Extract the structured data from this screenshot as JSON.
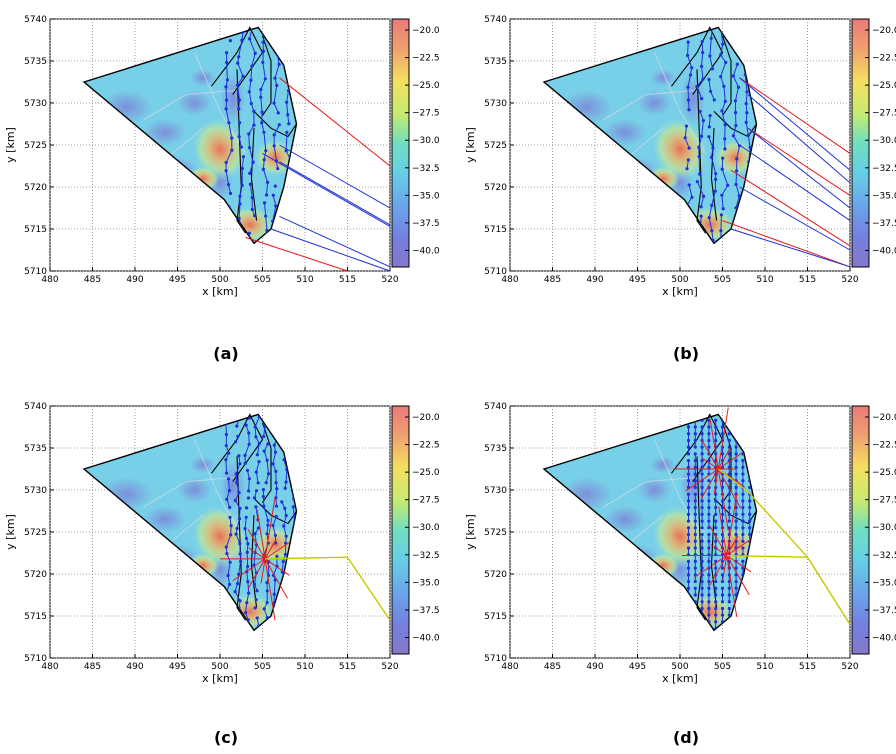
{
  "figure": {
    "panel_labels": [
      "(a)",
      "(b)",
      "(c)",
      "(d)"
    ],
    "xlabel": "x [km]",
    "ylabel": "y [km]"
  },
  "chart_data": [
    {
      "type": "heatmap",
      "label": "(a)",
      "xlabel": "x [km]",
      "ylabel": "y [km]",
      "xlim": [
        480,
        520
      ],
      "ylim": [
        5710,
        5740
      ],
      "xticks": [
        480,
        485,
        490,
        495,
        500,
        505,
        510,
        515,
        520
      ],
      "yticks": [
        5710,
        5715,
        5720,
        5725,
        5730,
        5735,
        5740
      ],
      "grid": true,
      "region": [
        [
          484,
          5732.5
        ],
        [
          504.5,
          5739
        ],
        [
          507.5,
          5734.5
        ],
        [
          509,
          5727.5
        ],
        [
          507.5,
          5720
        ],
        [
          506,
          5715
        ],
        [
          504,
          5713.3
        ],
        [
          500.5,
          5718.5
        ],
        [
          484,
          5732.5
        ]
      ],
      "colorbar": {
        "ticks": [
          -20.0,
          -22.5,
          -25.0,
          -27.5,
          -30.0,
          -32.5,
          -35.0,
          -37.5,
          -40.0
        ],
        "range": [
          -41.5,
          -19
        ]
      },
      "hotspots": [
        {
          "x": 500,
          "y": 5724.5,
          "v": -21
        },
        {
          "x": 503.5,
          "y": 5715.5,
          "v": -22
        },
        {
          "x": 506,
          "y": 5723.5,
          "v": -25
        }
      ],
      "overlays": [
        {
          "name": "red-links",
          "color": "#e41a1c",
          "segments": [
            [
              [
                507,
                5733
              ],
              [
                520,
                5722.5
              ]
            ],
            [
              [
                503,
                5714
              ],
              [
                515,
                5710
              ]
            ]
          ]
        },
        {
          "name": "blue-links",
          "color": "#1f31d8",
          "segments": [
            [
              [
                507,
                5725
              ],
              [
                520,
                5717.5
              ]
            ],
            [
              [
                507,
                5723
              ],
              [
                520,
                5715.5
              ]
            ],
            [
              [
                505,
                5724
              ],
              [
                520,
                5715.3
              ]
            ],
            [
              [
                507,
                5716.5
              ],
              [
                520,
                5710.5
              ]
            ],
            [
              [
                506,
                5715
              ],
              [
                520,
                5710
              ]
            ]
          ]
        }
      ]
    },
    {
      "type": "heatmap",
      "label": "(b)",
      "xlabel": "x [km]",
      "ylabel": "y [km]",
      "xlim": [
        480,
        520
      ],
      "ylim": [
        5710,
        5740
      ],
      "xticks": [
        480,
        485,
        490,
        495,
        500,
        505,
        510,
        515,
        520
      ],
      "yticks": [
        5710,
        5715,
        5720,
        5725,
        5730,
        5735,
        5740
      ],
      "grid": true,
      "colorbar": {
        "ticks": [
          -20.0,
          -22.5,
          -25.0,
          -27.5,
          -30.0,
          -32.5,
          -35.0,
          -37.5,
          -40.0
        ],
        "range": [
          -41.5,
          -19
        ]
      },
      "overlays": [
        {
          "name": "red-links",
          "color": "#e41a1c",
          "segments": [
            [
              [
                507,
                5733
              ],
              [
                520,
                5724
              ]
            ],
            [
              [
                508,
                5727
              ],
              [
                520,
                5719
              ]
            ],
            [
              [
                506,
                5722
              ],
              [
                520,
                5713
              ]
            ],
            [
              [
                505,
                5716
              ],
              [
                520,
                5710.5
              ]
            ]
          ]
        },
        {
          "name": "blue-links",
          "color": "#1f31d8",
          "segments": [
            [
              [
                507,
                5733
              ],
              [
                520,
                5722
              ]
            ],
            [
              [
                508,
                5731
              ],
              [
                520,
                5720.5
              ]
            ],
            [
              [
                508,
                5727
              ],
              [
                520,
                5717.5
              ]
            ],
            [
              [
                507,
                5725
              ],
              [
                520,
                5716
              ]
            ],
            [
              [
                507,
                5720
              ],
              [
                520,
                5712.5
              ]
            ],
            [
              [
                506,
                5715
              ],
              [
                520,
                5710.5
              ]
            ]
          ]
        }
      ]
    },
    {
      "type": "heatmap",
      "label": "(c)",
      "xlabel": "x [km]",
      "ylabel": "y [km]",
      "xlim": [
        480,
        520
      ],
      "ylim": [
        5710,
        5740
      ],
      "xticks": [
        480,
        485,
        490,
        495,
        500,
        505,
        510,
        515,
        520
      ],
      "yticks": [
        5710,
        5715,
        5720,
        5725,
        5730,
        5735,
        5740
      ],
      "grid": true,
      "colorbar": {
        "ticks": [
          -20.0,
          -22.5,
          -25.0,
          -27.5,
          -30.0,
          -32.5,
          -35.0,
          -37.5,
          -40.0
        ],
        "range": [
          -41.5,
          -19
        ]
      },
      "substation": {
        "x": 505.3,
        "y": 5721.8
      },
      "export_cable": {
        "color": "#c8c800",
        "points": [
          [
            505.3,
            5721.8
          ],
          [
            515,
            5722
          ],
          [
            520,
            5714.5
          ]
        ]
      }
    },
    {
      "type": "heatmap",
      "label": "(d)",
      "xlabel": "x [km]",
      "ylabel": "y [km]",
      "xlim": [
        480,
        520
      ],
      "ylim": [
        5710,
        5740
      ],
      "xticks": [
        480,
        485,
        490,
        495,
        500,
        505,
        510,
        515,
        520
      ],
      "yticks": [
        5710,
        5715,
        5720,
        5725,
        5730,
        5735,
        5740
      ],
      "grid": true,
      "colorbar": {
        "ticks": [
          -20.0,
          -22.5,
          -25.0,
          -27.5,
          -30.0,
          -32.5,
          -35.0,
          -37.5,
          -40.0
        ],
        "range": [
          -41.5,
          -19
        ]
      },
      "substations": [
        {
          "x": 505.5,
          "y": 5722.2
        },
        {
          "x": 504.5,
          "y": 5732.5
        }
      ],
      "export_cable": {
        "color": "#c8c800",
        "points": [
          [
            504.5,
            5732.5
          ],
          [
            508,
            5729.8
          ],
          [
            515,
            5722
          ],
          [
            520,
            5714
          ]
        ],
        "branch": [
          [
            505.5,
            5722.2
          ],
          [
            515,
            5722
          ]
        ]
      }
    }
  ]
}
